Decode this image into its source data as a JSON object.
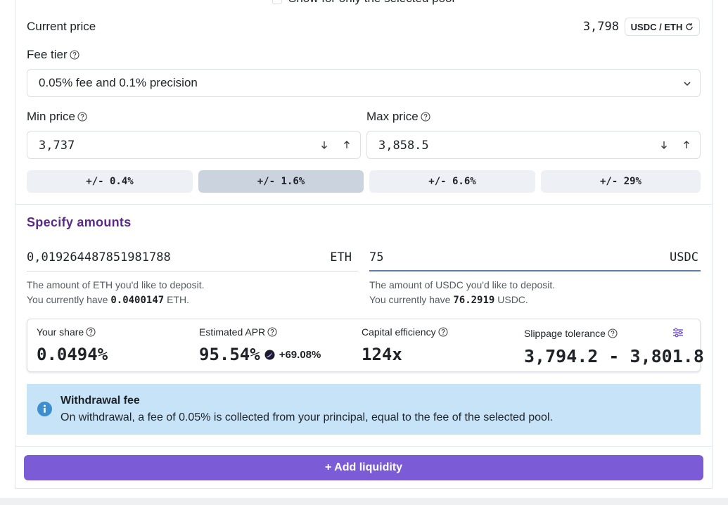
{
  "top_option": "Show for only the selected pool",
  "current_price": {
    "label": "Current price",
    "value": "3,798",
    "pair": "USDC / ETH"
  },
  "fee_tier": {
    "label": "Fee tier",
    "selected": "0.05% fee and 0.1% precision"
  },
  "min_price": {
    "label": "Min price",
    "value": "3,737"
  },
  "max_price": {
    "label": "Max price",
    "value": "3,858.5"
  },
  "ranges": [
    "+/- 0.4%",
    "+/- 1.6%",
    "+/- 6.6%",
    "+/- 29%"
  ],
  "amounts": {
    "title": "Specify amounts",
    "eth": {
      "value": "0,019264487851981788",
      "unit": "ETH",
      "hint": "The amount of ETH you'd like to deposit.",
      "have_prefix": "You currently have",
      "balance": "0.0400147",
      "have_suffix": "ETH."
    },
    "usdc": {
      "value": "75",
      "unit": "USDC",
      "hint": "The amount of USDC you'd like to deposit.",
      "have_prefix": "You currently have",
      "balance": "76.2919",
      "have_suffix": "USDC."
    }
  },
  "stats": {
    "share": {
      "label": "Your share",
      "value": "0.0494%"
    },
    "apr": {
      "label": "Estimated APR",
      "value": "95.54%",
      "bonus": "+69.08%"
    },
    "efficiency": {
      "label": "Capital efficiency",
      "value": "124x"
    },
    "slippage": {
      "label": "Slippage tolerance",
      "value": "3,794.2 - 3,801.8"
    }
  },
  "notice": {
    "title": "Withdrawal fee",
    "text": "On withdrawal, a fee of 0.05% is collected from your principal, equal to the fee of the selected pool."
  },
  "submit": "+ Add liquidity"
}
